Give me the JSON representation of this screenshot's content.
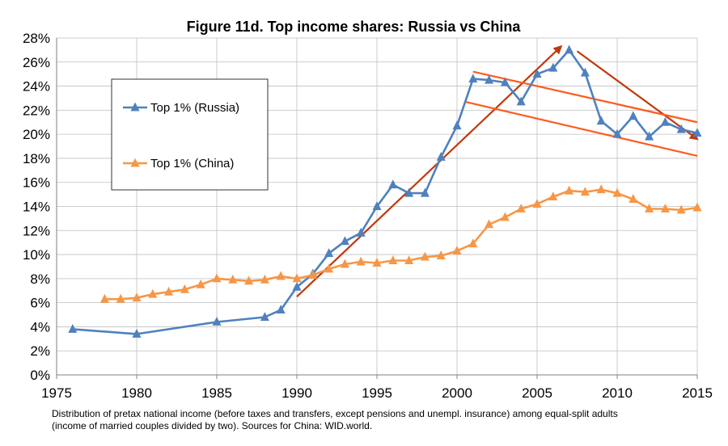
{
  "chart_data": {
    "type": "line",
    "title": "Figure 11d. Top income shares: Russia vs China",
    "xlim": [
      1975,
      2015
    ],
    "ylim": [
      0,
      0.28
    ],
    "x_ticks": [
      1975,
      1980,
      1985,
      1990,
      1995,
      2000,
      2005,
      2010,
      2015
    ],
    "x_tick_labels": [
      "1975",
      "1980",
      "1985",
      "1990",
      "1995",
      "2000",
      "2005",
      "2010",
      "2015"
    ],
    "y_ticks": [
      0,
      0.02,
      0.04,
      0.06,
      0.08,
      0.1,
      0.12,
      0.14,
      0.16,
      0.18,
      0.2,
      0.22,
      0.24,
      0.26,
      0.28
    ],
    "y_tick_labels": [
      "0%",
      "2%",
      "4%",
      "6%",
      "8%",
      "10%",
      "12%",
      "14%",
      "16%",
      "18%",
      "20%",
      "22%",
      "24%",
      "26%",
      "28%"
    ],
    "grid": true,
    "legend_position": "upper-left",
    "series": [
      {
        "name": "Top 1% (Russia)",
        "color": "#4F81BD",
        "marker": "triangle",
        "x": [
          1976,
          1980,
          1985,
          1988,
          1989,
          1990,
          1991,
          1992,
          1993,
          1994,
          1995,
          1996,
          1997,
          1998,
          1999,
          2000,
          2001,
          2002,
          2003,
          2004,
          2005,
          2006,
          2007,
          2008,
          2009,
          2010,
          2011,
          2012,
          2013,
          2014,
          2015
        ],
        "y": [
          0.038,
          0.034,
          0.044,
          0.048,
          0.054,
          0.073,
          0.084,
          0.101,
          0.111,
          0.118,
          0.14,
          0.158,
          0.151,
          0.151,
          0.181,
          0.207,
          0.246,
          0.245,
          0.243,
          0.227,
          0.25,
          0.255,
          0.27,
          0.251,
          0.211,
          0.2,
          0.215,
          0.198,
          0.21,
          0.204,
          0.201
        ]
      },
      {
        "name": "Top 1% (China)",
        "color": "#F79646",
        "marker": "triangle",
        "x": [
          1978,
          1979,
          1980,
          1981,
          1982,
          1983,
          1984,
          1985,
          1986,
          1987,
          1988,
          1989,
          1990,
          1991,
          1992,
          1993,
          1994,
          1995,
          1996,
          1997,
          1998,
          1999,
          2000,
          2001,
          2002,
          2003,
          2004,
          2005,
          2006,
          2007,
          2008,
          2009,
          2010,
          2011,
          2012,
          2013,
          2014,
          2015
        ],
        "y": [
          0.063,
          0.063,
          0.064,
          0.067,
          0.069,
          0.071,
          0.075,
          0.08,
          0.079,
          0.078,
          0.079,
          0.082,
          0.08,
          0.083,
          0.088,
          0.092,
          0.094,
          0.093,
          0.095,
          0.095,
          0.098,
          0.099,
          0.103,
          0.109,
          0.125,
          0.131,
          0.138,
          0.142,
          0.148,
          0.153,
          0.152,
          0.154,
          0.151,
          0.146,
          0.138,
          0.138,
          0.137,
          0.139
        ]
      }
    ],
    "annotations": [
      {
        "type": "arrow",
        "color": "#C0390B",
        "from": [
          1990,
          0.065
        ],
        "to": [
          2006.5,
          0.273
        ]
      },
      {
        "type": "arrow",
        "color": "#C0390B",
        "from": [
          2007.5,
          0.269
        ],
        "to": [
          2015,
          0.196
        ]
      },
      {
        "type": "line",
        "color": "#FF5A1F",
        "from": [
          2001,
          0.252
        ],
        "to": [
          2015,
          0.21
        ]
      },
      {
        "type": "line",
        "color": "#FF5A1F",
        "from": [
          2000.5,
          0.227
        ],
        "to": [
          2015,
          0.182
        ]
      }
    ]
  },
  "footnote": {
    "line1": "Distribution of pretax national income (before taxes and transfers, except pensions and unempl. insurance) among equal-split adults",
    "line2": "(income of married couples divided by two). Sources for China: WID.world."
  }
}
